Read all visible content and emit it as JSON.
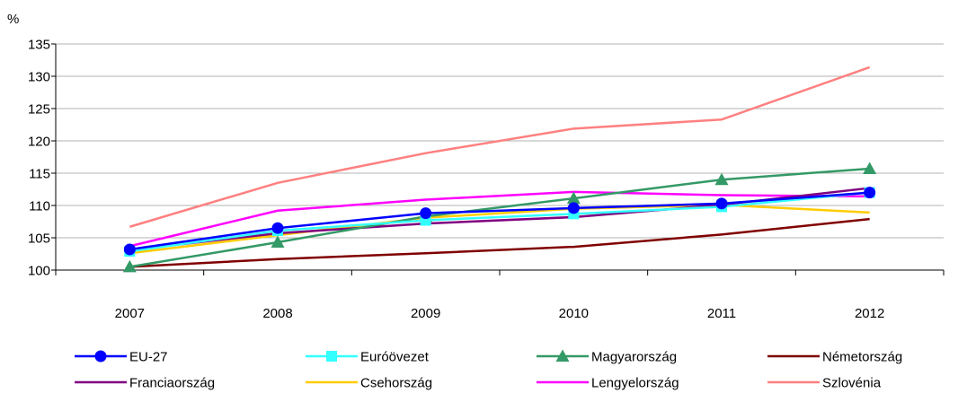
{
  "chart_data": {
    "type": "line",
    "unit_label": "%",
    "categories": [
      "2007",
      "2008",
      "2009",
      "2010",
      "2011",
      "2012"
    ],
    "ylim": [
      100,
      135
    ],
    "yticks": [
      100,
      105,
      110,
      115,
      120,
      125,
      130,
      135
    ],
    "grid": true,
    "legend": "bottom",
    "series": [
      {
        "name": "EU-27",
        "color": "#0000ff",
        "marker": "circle",
        "values": [
          103.2,
          106.5,
          108.8,
          109.6,
          110.3,
          112.0
        ]
      },
      {
        "name": "Euróövezet",
        "color": "#33ffff",
        "marker": "square",
        "values": [
          102.9,
          106.1,
          107.7,
          108.7,
          109.8,
          112.0
        ]
      },
      {
        "name": "Magyarország",
        "color": "#339966",
        "marker": "triangle",
        "values": [
          100.5,
          104.3,
          108.3,
          111.1,
          114.0,
          115.7
        ]
      },
      {
        "name": "Németország",
        "color": "#800000",
        "marker": "none",
        "values": [
          100.5,
          101.7,
          102.6,
          103.6,
          105.5,
          107.9
        ]
      },
      {
        "name": "Franciaország",
        "color": "#800080",
        "marker": "none",
        "values": [
          103.1,
          105.7,
          107.2,
          108.2,
          110.1,
          112.7
        ]
      },
      {
        "name": "Csehország",
        "color": "#ffcc00",
        "marker": "none",
        "values": [
          102.6,
          105.4,
          108.1,
          109.5,
          110.1,
          108.9
        ]
      },
      {
        "name": "Lengyelország",
        "color": "#ff00ff",
        "marker": "none",
        "values": [
          103.7,
          109.2,
          110.9,
          112.1,
          111.6,
          111.4
        ]
      },
      {
        "name": "Szlovénia",
        "color": "#ff8080",
        "marker": "none",
        "values": [
          106.7,
          113.5,
          118.1,
          121.9,
          123.3,
          131.4
        ]
      }
    ]
  }
}
